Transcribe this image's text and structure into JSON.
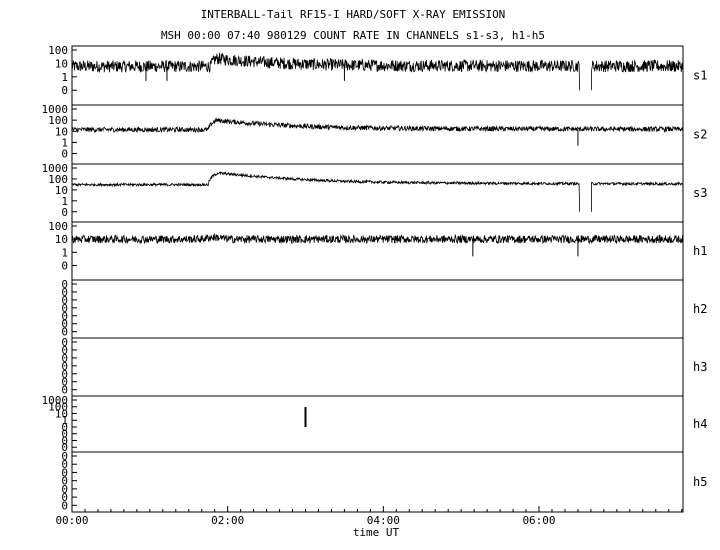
{
  "header": {
    "title": "INTERBALL-Tail RF15-I HARD/SOFT X-RAY EMISSION",
    "subtitle": "MSH 00:00 07:40 980129  COUNT RATE IN CHANNELS s1-s3, h1-h5"
  },
  "chart_data": {
    "type": "line",
    "x_axis": {
      "label": "time UT",
      "range_hours": [
        0,
        7.85
      ],
      "ticks": [
        {
          "hour": 0,
          "label": "00:00"
        },
        {
          "hour": 2,
          "label": "02:00"
        },
        {
          "hour": 4,
          "label": "04:00"
        },
        {
          "hour": 6,
          "label": "06:00"
        }
      ],
      "minor_tick_minutes": 10
    },
    "scale": "log (count rate)",
    "panels": [
      {
        "name": "s1",
        "y_labels": [
          "100",
          "10",
          "1",
          "0"
        ],
        "baseline": 6,
        "noise": 0.45,
        "features": [
          {
            "type": "flare",
            "start": 1.78,
            "peak": 1.85,
            "peak_value": 22
          }
        ],
        "gaps": [
          {
            "start": 6.52,
            "end": 6.67
          }
        ],
        "dropouts": [
          0.95,
          1.22,
          3.5
        ]
      },
      {
        "name": "s2",
        "y_labels": [
          "1000",
          "100",
          "10",
          "1",
          "0"
        ],
        "baseline": 14,
        "noise": 0.22,
        "features": [
          {
            "type": "flare",
            "start": 1.75,
            "peak": 1.85,
            "peak_value": 90
          },
          {
            "type": "bump",
            "center": 3.8,
            "value": 20
          }
        ],
        "gaps": [],
        "dropouts": [
          6.5
        ]
      },
      {
        "name": "s3",
        "y_labels": [
          "1000",
          "100",
          "10",
          "1",
          "0"
        ],
        "baseline": 30,
        "noise": 0.12,
        "features": [
          {
            "type": "flare",
            "start": 1.75,
            "peak": 1.87,
            "peak_value": 330
          },
          {
            "type": "bump",
            "center": 3.8,
            "value": 55
          }
        ],
        "gaps": [
          {
            "start": 6.52,
            "end": 6.67
          }
        ],
        "dropouts": []
      },
      {
        "name": "h1",
        "y_labels": [
          "100",
          "10",
          "1",
          "0"
        ],
        "baseline": 10,
        "noise": 0.3,
        "features": [
          {
            "type": "bump",
            "center": 1.83,
            "value": 14
          }
        ],
        "gaps": [],
        "dropouts": [
          5.15,
          6.5
        ]
      },
      {
        "name": "h2",
        "y_labels": [
          "0",
          "0",
          "0",
          "0",
          "0",
          "0",
          "0"
        ],
        "empty": true
      },
      {
        "name": "h3",
        "y_labels": [
          "0",
          "0",
          "0",
          "0",
          "0",
          "0",
          "0"
        ],
        "empty": true
      },
      {
        "name": "h4",
        "y_labels": [
          "1000",
          "100",
          "10",
          "1",
          "0",
          "0",
          "0",
          "0"
        ],
        "spikes": [
          {
            "hour": 3.0,
            "value": 90
          }
        ]
      },
      {
        "name": "h5",
        "y_labels": [
          "0",
          "0",
          "0",
          "0",
          "0",
          "0",
          "0"
        ],
        "empty": true
      }
    ]
  }
}
